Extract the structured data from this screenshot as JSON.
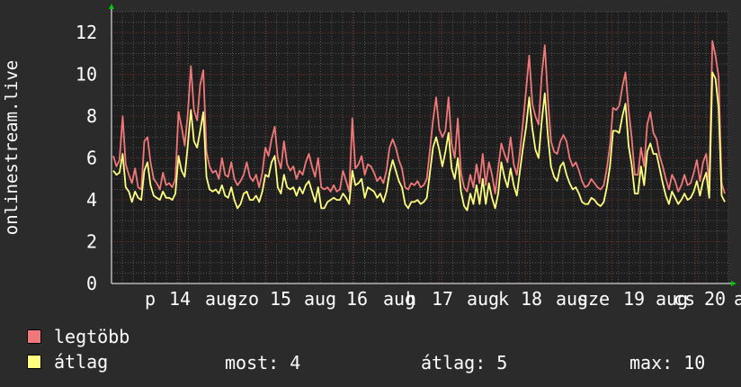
{
  "chart_data": {
    "type": "line",
    "ylabel": "onlinestream.live",
    "xlabel": "",
    "title": "",
    "ylim": [
      0,
      13
    ],
    "y_ticks": [
      0,
      2,
      4,
      6,
      8,
      10,
      12
    ],
    "x_ticks": [
      "p",
      "14",
      "aug",
      "szo",
      "15",
      "aug",
      "16",
      "aug",
      "h",
      "17",
      "aug",
      "k",
      "18",
      "aug",
      "sze",
      "19",
      "aug",
      "cs",
      "20",
      "a"
    ],
    "grid": true,
    "series": [
      {
        "name": "legtöbb",
        "color": "#f07878",
        "values": [
          6.1,
          5.6,
          5.9,
          8.0,
          5.7,
          5.2,
          4.8,
          5.5,
          4.6,
          4.5,
          6.8,
          7.0,
          5.8,
          5.0,
          4.8,
          4.5,
          5.3,
          4.7,
          4.8,
          4.6,
          5.0,
          8.2,
          7.5,
          6.6,
          8.1,
          10.4,
          8.3,
          7.8,
          9.5,
          10.2,
          6.3,
          5.6,
          5.3,
          5.4,
          5.0,
          6.0,
          5.2,
          5.1,
          5.8,
          5.0,
          4.7,
          4.9,
          5.2,
          5.8,
          5.1,
          4.9,
          5.2,
          4.6,
          5.3,
          6.5,
          6.1,
          6.9,
          7.5,
          6.0,
          5.5,
          6.8,
          5.7,
          5.4,
          5.6,
          5.0,
          5.4,
          5.2,
          5.8,
          6.2,
          5.6,
          5.1,
          6.0,
          4.6,
          4.5,
          4.6,
          4.4,
          4.7,
          4.4,
          4.5,
          5.4,
          4.9,
          4.4,
          7.9,
          5.5,
          5.7,
          6.1,
          5.2,
          5.7,
          5.6,
          5.3,
          4.9,
          5.1,
          4.8,
          5.4,
          6.5,
          6.9,
          6.5,
          5.9,
          5.5,
          4.6,
          4.5,
          4.8,
          4.7,
          4.9,
          4.6,
          4.7,
          5.0,
          6.4,
          7.8,
          8.9,
          7.4,
          7.0,
          7.3,
          8.9,
          6.7,
          6.0,
          7.9,
          5.3,
          4.6,
          4.4,
          5.2,
          4.6,
          5.7,
          4.8,
          6.2,
          4.7,
          5.8,
          5.2,
          4.3,
          5.5,
          6.7,
          6.2,
          5.8,
          7.0,
          5.7,
          5.2,
          6.3,
          7.7,
          9.3,
          10.9,
          8.6,
          8.0,
          7.6,
          9.9,
          11.4,
          8.9,
          6.8,
          6.3,
          6.2,
          6.8,
          7.1,
          6.8,
          6.0,
          5.6,
          5.8,
          5.4,
          4.9,
          4.6,
          4.7,
          5.0,
          4.8,
          4.6,
          4.5,
          4.7,
          5.5,
          6.6,
          8.4,
          8.3,
          8.5,
          9.4,
          10.1,
          8.3,
          7.0,
          5.2,
          5.2,
          6.5,
          5.6,
          7.6,
          8.2,
          7.2,
          6.9,
          6.1,
          5.6,
          5.0,
          4.5,
          5.2,
          4.9,
          4.4,
          4.7,
          5.2,
          4.7,
          4.8,
          5.3,
          5.9,
          4.9,
          5.8,
          6.2,
          4.8,
          11.6,
          10.9,
          9.9,
          4.8,
          4.3
        ]
      },
      {
        "name": "átlag",
        "color": "#ffff80",
        "values": [
          5.4,
          5.2,
          5.3,
          6.2,
          4.6,
          4.4,
          3.9,
          4.4,
          4.1,
          4.0,
          5.4,
          5.8,
          4.7,
          4.2,
          4.1,
          4.0,
          4.4,
          4.1,
          4.1,
          4.0,
          4.3,
          6.1,
          5.4,
          5.1,
          6.6,
          8.3,
          6.8,
          6.5,
          7.3,
          8.2,
          5.1,
          4.5,
          4.4,
          4.5,
          4.3,
          4.7,
          4.2,
          4.1,
          4.6,
          4.0,
          3.6,
          3.8,
          4.3,
          4.4,
          4.0,
          4.0,
          4.2,
          3.9,
          4.4,
          5.2,
          5.1,
          5.8,
          6.1,
          4.6,
          4.3,
          5.2,
          4.6,
          4.5,
          4.6,
          4.2,
          4.6,
          4.3,
          4.7,
          4.9,
          4.4,
          3.9,
          4.6,
          3.6,
          3.6,
          3.9,
          4.0,
          4.1,
          4.0,
          4.0,
          4.3,
          4.1,
          3.8,
          5.4,
          4.7,
          4.8,
          5.0,
          4.1,
          4.6,
          4.5,
          4.4,
          4.1,
          4.3,
          3.9,
          4.4,
          5.3,
          5.9,
          5.4,
          4.9,
          4.6,
          3.8,
          3.6,
          3.9,
          3.9,
          4.0,
          3.8,
          3.9,
          4.1,
          5.3,
          6.5,
          7.0,
          6.4,
          5.6,
          6.3,
          7.2,
          5.5,
          5.0,
          6.0,
          4.4,
          3.7,
          3.5,
          4.3,
          3.8,
          4.7,
          3.8,
          5.0,
          3.8,
          4.8,
          4.1,
          3.6,
          4.3,
          5.8,
          5.1,
          4.6,
          5.5,
          4.7,
          4.2,
          5.4,
          6.5,
          7.5,
          8.9,
          7.4,
          6.4,
          6.0,
          7.7,
          9.1,
          7.1,
          5.6,
          5.1,
          4.9,
          5.6,
          5.8,
          5.2,
          4.8,
          4.5,
          4.6,
          4.3,
          3.9,
          3.8,
          3.8,
          4.1,
          4.0,
          3.8,
          3.7,
          3.9,
          4.6,
          5.6,
          7.3,
          7.3,
          7.2,
          8.0,
          8.6,
          6.6,
          5.7,
          4.3,
          4.3,
          5.6,
          4.7,
          6.3,
          6.7,
          6.2,
          6.2,
          5.5,
          4.8,
          4.2,
          3.8,
          4.4,
          4.1,
          3.8,
          4.0,
          4.3,
          4.0,
          4.1,
          4.4,
          4.9,
          4.2,
          4.9,
          5.3,
          4.1,
          10.1,
          9.8,
          8.4,
          4.2,
          3.9
        ]
      }
    ]
  },
  "legend": {
    "max_label": "legtöbb",
    "avg_label": "átlag"
  },
  "stats": {
    "now": "most: 4",
    "avg": "átlag: 5",
    "max": "max: 10"
  },
  "colors": {
    "background": "#2b2b2b",
    "plot_background": "#1e1e1e",
    "grid_major": "#7a3030",
    "grid_minor": "#555555",
    "axis": "#ffffff",
    "arrow": "#00c800"
  }
}
